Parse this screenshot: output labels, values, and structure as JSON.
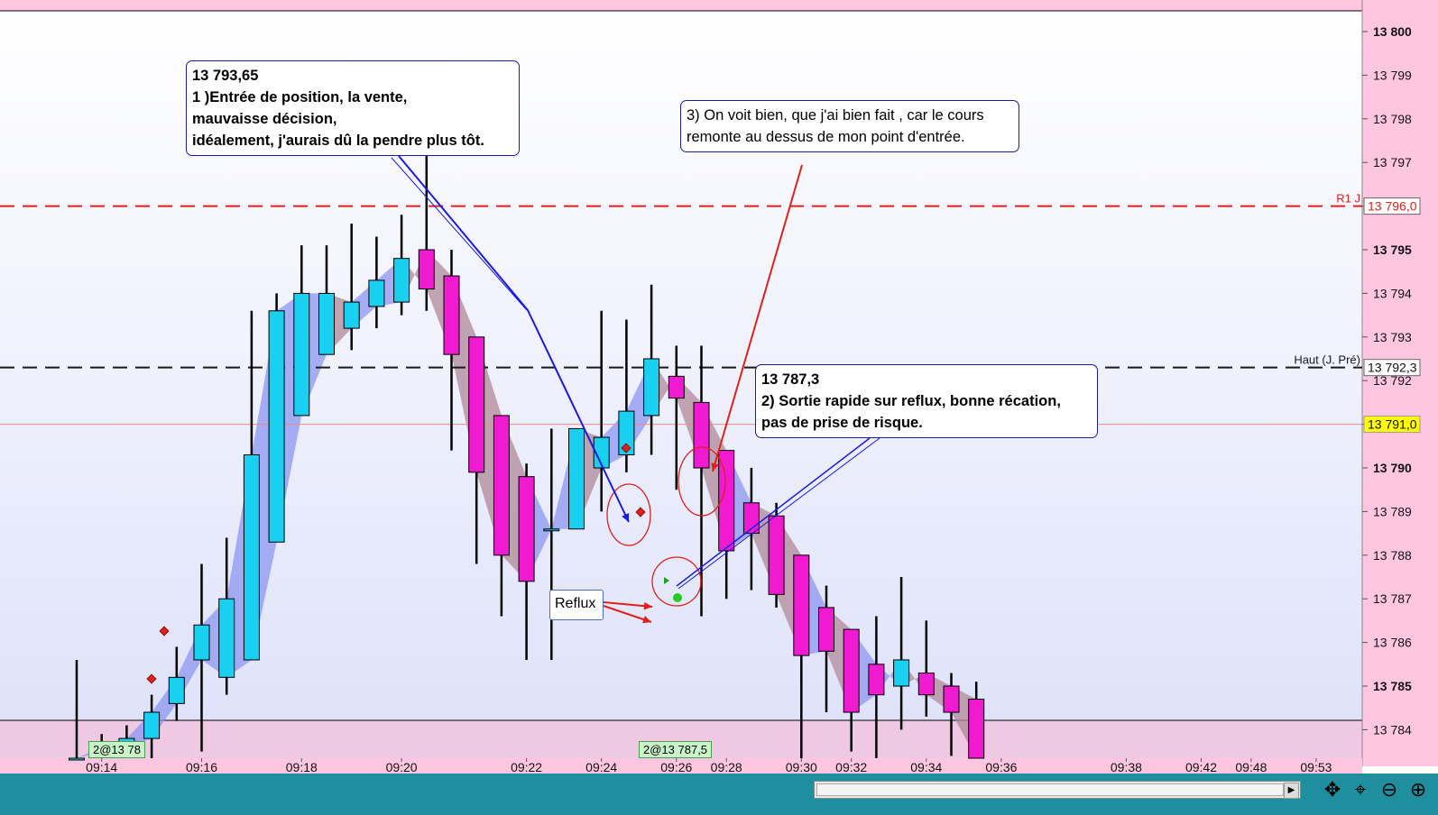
{
  "chart_data": {
    "type": "candlestick",
    "instrument_price_axis": {
      "ylim": [
        13783.5,
        13800.5
      ],
      "ticks": [
        "13 800",
        "13 799",
        "13 798",
        "13 797",
        "13 796",
        "13 795",
        "13 794",
        "13 793",
        "13 792",
        "13 791",
        "13 790",
        "13 789",
        "13 788",
        "13 787",
        "13 786",
        "13 785",
        "13 784"
      ],
      "tick_values": [
        13800,
        13799,
        13798,
        13797,
        13796,
        13795,
        13794,
        13793,
        13792,
        13791,
        13790,
        13789,
        13788,
        13787,
        13786,
        13785,
        13784
      ],
      "bold_ticks": [
        13800,
        13795,
        13790,
        13785
      ]
    },
    "time_axis": {
      "labels": [
        "09:14",
        "09:16",
        "09:18",
        "09:20",
        "09:22",
        "09:24",
        "09:26",
        "09:28",
        "09:30",
        "09:32",
        "09:34",
        "09:36",
        "09:38",
        "09:42",
        "09:48",
        "09:53"
      ],
      "label_bar_index": [
        1,
        5,
        9,
        13,
        18,
        21,
        24,
        26,
        29,
        31,
        34,
        37,
        42,
        45,
        47,
        49.6
      ]
    },
    "candles": [
      {
        "o": 13783.0,
        "h": 13785.6,
        "l": 13783.0,
        "c": 13783.0
      },
      {
        "o": 13783.5,
        "h": 13783.9,
        "l": 13783.3,
        "c": 13783.6
      },
      {
        "o": 13783.6,
        "h": 13784.1,
        "l": 13783.0,
        "c": 13783.8
      },
      {
        "o": 13783.8,
        "h": 13784.8,
        "l": 13783.3,
        "c": 13784.4
      },
      {
        "o": 13784.6,
        "h": 13785.9,
        "l": 13784.2,
        "c": 13785.2
      },
      {
        "o": 13785.6,
        "h": 13787.8,
        "l": 13783.5,
        "c": 13786.4
      },
      {
        "o": 13785.2,
        "h": 13788.4,
        "l": 13784.8,
        "c": 13787.0
      },
      {
        "o": 13785.6,
        "h": 13793.6,
        "l": 13785.6,
        "c": 13790.3
      },
      {
        "o": 13788.3,
        "h": 13794.0,
        "l": 13788.3,
        "c": 13793.6
      },
      {
        "o": 13791.2,
        "h": 13795.1,
        "l": 13791.2,
        "c": 13794.0
      },
      {
        "o": 13792.6,
        "h": 13795.1,
        "l": 13792.6,
        "c": 13794.0
      },
      {
        "o": 13793.2,
        "h": 13795.6,
        "l": 13792.7,
        "c": 13793.8
      },
      {
        "o": 13793.7,
        "h": 13795.3,
        "l": 13793.2,
        "c": 13794.3
      },
      {
        "o": 13793.8,
        "h": 13795.8,
        "l": 13793.5,
        "c": 13794.8
      },
      {
        "o": 13795.0,
        "h": 13797.5,
        "l": 13793.6,
        "c": 13794.1
      },
      {
        "o": 13794.4,
        "h": 13795.0,
        "l": 13790.4,
        "c": 13792.6
      },
      {
        "o": 13793.0,
        "h": 13793.0,
        "l": 13787.8,
        "c": 13789.9
      },
      {
        "o": 13791.2,
        "h": 13791.2,
        "l": 13786.6,
        "c": 13788.0
      },
      {
        "o": 13789.8,
        "h": 13790.1,
        "l": 13785.6,
        "c": 13787.4
      },
      {
        "o": 13788.6,
        "h": 13790.9,
        "l": 13785.6,
        "c": 13788.6
      },
      {
        "o": 13788.6,
        "h": 13790.9,
        "l": 13788.6,
        "c": 13790.9
      },
      {
        "o": 13790.0,
        "h": 13793.6,
        "l": 13789.0,
        "c": 13790.7
      },
      {
        "o": 13790.3,
        "h": 13793.4,
        "l": 13789.9,
        "c": 13791.3
      },
      {
        "o": 13791.2,
        "h": 13794.2,
        "l": 13790.3,
        "c": 13792.5
      },
      {
        "o": 13792.1,
        "h": 13792.8,
        "l": 13789.5,
        "c": 13791.6
      },
      {
        "o": 13791.5,
        "h": 13792.8,
        "l": 13786.6,
        "c": 13790.0
      },
      {
        "o": 13790.4,
        "h": 13790.4,
        "l": 13787.0,
        "c": 13788.1
      },
      {
        "o": 13789.2,
        "h": 13790.0,
        "l": 13787.2,
        "c": 13788.5
      },
      {
        "o": 13788.9,
        "h": 13789.2,
        "l": 13786.8,
        "c": 13787.1
      },
      {
        "o": 13788.0,
        "h": 13788.0,
        "l": 13783.0,
        "c": 13785.7
      },
      {
        "o": 13786.8,
        "h": 13787.3,
        "l": 13784.4,
        "c": 13785.8
      },
      {
        "o": 13786.3,
        "h": 13786.3,
        "l": 13783.5,
        "c": 13784.4
      },
      {
        "o": 13785.5,
        "h": 13786.6,
        "l": 13783.0,
        "c": 13784.8
      },
      {
        "o": 13785.0,
        "h": 13787.5,
        "l": 13784.0,
        "c": 13785.6
      },
      {
        "o": 13785.3,
        "h": 13786.5,
        "l": 13784.3,
        "c": 13784.8
      },
      {
        "o": 13785.0,
        "h": 13785.3,
        "l": 13783.4,
        "c": 13784.4
      },
      {
        "o": 13784.7,
        "h": 13785.1,
        "l": 13783.0,
        "c": 13783.3
      }
    ],
    "horizontal_levels": [
      {
        "label": "R1 J",
        "value_label": "13 796,0",
        "value": 13796.0,
        "color": "#e0201a",
        "style": "dashed"
      },
      {
        "label": "Haut (J. Pré)",
        "value_label": "13 792,3",
        "value": 13792.3,
        "color": "#1a1a1a",
        "style": "dashed"
      },
      {
        "label": "",
        "value_label": "13 791,0",
        "value": 13791.0,
        "color": "#f08888",
        "style": "solid"
      }
    ],
    "colors": {
      "up": "#1ad0f0",
      "down": "#f01ad0",
      "ribbon_up": "#8c96f0",
      "ribbon_down": "#b08898",
      "background_top": "#ffffff",
      "background_bottom": "#dfe3fa",
      "lower_band": "#efc8e4",
      "top_band": "#ffc6e2"
    },
    "annotations": {
      "entry": {
        "lines": [
          "13 793,65",
          "1 )Entrée de position,  la vente,",
          "mauvaisse décision,",
          "idéalement, j'aurais dû la pendre plus tôt."
        ]
      },
      "comment": {
        "lines": [
          "3) On voit bien, que j'ai bien fait , car le cours",
          "remonte au dessus de mon point d'entrée."
        ]
      },
      "exit": {
        "lines": [
          "13 787,3",
          "2) Sortie rapide sur reflux, bonne récation,",
          "pas de prise de risque."
        ]
      },
      "reflux_label": "Reflux",
      "order_tags": [
        "2@13 78",
        "2@13 787,5"
      ]
    },
    "grid": false,
    "legend": "none"
  }
}
